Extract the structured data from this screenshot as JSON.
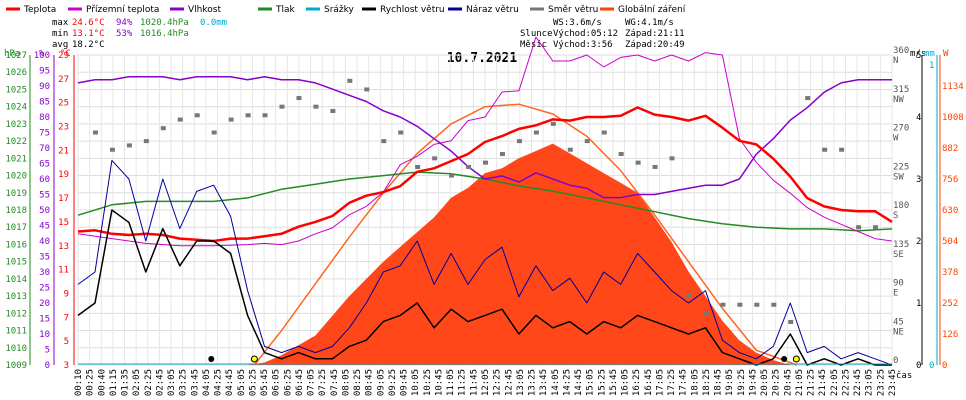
{
  "chart_data": {
    "type": "line",
    "title": "10.7.2021",
    "x_label": "čas",
    "x_ticks": [
      "00:10",
      "00:25",
      "00:40",
      "01:15",
      "01:35",
      "02:05",
      "02:25",
      "02:45",
      "03:05",
      "03:25",
      "03:45",
      "04:05",
      "04:25",
      "04:45",
      "05:05",
      "05:25",
      "05:45",
      "06:05",
      "06:25",
      "06:45",
      "07:05",
      "07:25",
      "07:45",
      "08:05",
      "08:25",
      "08:45",
      "09:05",
      "09:25",
      "09:45",
      "10:05",
      "10:25",
      "10:45",
      "11:05",
      "11:25",
      "11:45",
      "12:05",
      "12:25",
      "12:45",
      "13:05",
      "13:25",
      "13:45",
      "14:05",
      "14:25",
      "14:45",
      "15:05",
      "15:25",
      "15:45",
      "16:05",
      "16:25",
      "16:45",
      "17:05",
      "17:25",
      "17:45",
      "18:05",
      "18:25",
      "18:45",
      "19:05",
      "19:25",
      "19:45",
      "20:05",
      "20:25",
      "20:45",
      "21:05",
      "21:25",
      "21:45",
      "22:05",
      "22:25",
      "22:45",
      "23:05",
      "23:25",
      "23:45"
    ],
    "legend": [
      {
        "name": "Teplota",
        "color": "#ff0000"
      },
      {
        "name": "Přízemní teplota",
        "color": "#cc00cc"
      },
      {
        "name": "Vlhkost",
        "color": "#8800cc"
      },
      {
        "name": "Tlak",
        "color": "#228B22"
      },
      {
        "name": "Srážky",
        "color": "#00aacc"
      },
      {
        "name": "Rychlost větru",
        "color": "#000000"
      },
      {
        "name": "Náraz větru",
        "color": "#000099"
      },
      {
        "name": "Směr větru",
        "color": "#777777"
      },
      {
        "name": "Globální záření",
        "color": "#ff4400"
      }
    ],
    "stats": [
      {
        "label": "max",
        "temp": "24.6°C",
        "hum": "94%",
        "pres": "1020.4hPa",
        "rain": "0.0mm"
      },
      {
        "label": "min",
        "temp": "13.1°C",
        "hum": "53%",
        "pres": "1016.4hPa",
        "rain": ""
      },
      {
        "label": "avg",
        "temp": "18.2°C",
        "hum": "",
        "pres": "",
        "rain": ""
      }
    ],
    "wind_info": [
      "WS:3.6m/s",
      "WG:4.1m/s"
    ],
    "sun_info": {
      "label": "Slunce",
      "rise": "Východ:05:12",
      "set": "Západ:21:11"
    },
    "moon_info": {
      "label": "Měsíc",
      "rise": "Východ:3:56",
      "set": "Západ:20:49"
    },
    "axes": {
      "pressure": {
        "unit": "hPa",
        "min": 1009,
        "max": 1027,
        "ticks": [
          "1009",
          "1010",
          "1011",
          "1012",
          "1013",
          "1014",
          "1015",
          "1016",
          "1017",
          "1018",
          "1019",
          "1020",
          "1021",
          "1022",
          "1023",
          "1024",
          "1025",
          "1026",
          "1027"
        ]
      },
      "humidity": {
        "unit": "%",
        "min": 0,
        "max": 100,
        "ticks": [
          "0",
          "5",
          "10",
          "15",
          "20",
          "25",
          "30",
          "35",
          "40",
          "45",
          "50",
          "55",
          "60",
          "65",
          "70",
          "75",
          "80",
          "85",
          "90",
          "95",
          "100"
        ]
      },
      "temperature": {
        "unit": "°C",
        "min": 3,
        "max": 29,
        "ticks": [
          "3",
          "5",
          "7",
          "9",
          "11",
          "13",
          "15",
          "17",
          "19",
          "21",
          "23",
          "25",
          "27",
          "29"
        ]
      },
      "wind_speed": {
        "unit": "m/s",
        "min": 0,
        "max": 5
      },
      "wind_dir": {
        "ticks": [
          "360",
          "315",
          "270",
          "225",
          "180",
          "135",
          "90",
          "45",
          "0"
        ],
        "labels": [
          "N",
          "NW",
          "W",
          "SW",
          "S",
          "SE",
          "E",
          "NE",
          ""
        ]
      },
      "rain": {
        "unit": "mm",
        "min": 0,
        "max": 1
      },
      "radiation": {
        "unit": "W",
        "ticks": [
          "0",
          "126",
          "252",
          "378",
          "504",
          "630",
          "756",
          "882",
          "1008",
          "1134"
        ]
      }
    },
    "series": {
      "temperature": {
        "x": [
          0,
          0.5,
          1,
          1.5,
          2,
          2.5,
          3,
          3.5,
          4,
          4.5,
          5,
          5.5,
          6,
          6.5,
          7,
          7.5,
          8,
          8.5,
          9,
          9.5,
          10,
          10.5,
          11,
          11.5,
          12,
          12.5,
          13,
          13.5,
          14,
          14.5,
          15,
          15.5,
          16,
          16.5,
          17,
          17.5,
          18,
          18.5,
          19,
          19.5,
          20,
          20.5,
          21,
          21.5,
          22,
          22.5,
          23,
          23.5,
          24
        ],
        "y": [
          14.2,
          14.3,
          14,
          13.9,
          14,
          13.9,
          13.6,
          13.5,
          13.4,
          13.6,
          13.6,
          13.8,
          14,
          14.6,
          15,
          15.5,
          16.6,
          17.2,
          17.5,
          18,
          19.2,
          19.5,
          20.1,
          20.7,
          21.7,
          22.2,
          22.8,
          23.1,
          23.6,
          23.5,
          23.8,
          23.8,
          23.9,
          24.6,
          24.0,
          23.8,
          23.5,
          23.9,
          22.9,
          21.8,
          21.5,
          20.3,
          18.8,
          17.0,
          16.3,
          16.0,
          15.9,
          15.9,
          15.0
        ]
      },
      "ground_temperature": {
        "x": [
          0,
          1,
          2,
          3,
          4,
          5,
          5.5,
          6,
          6.5,
          7,
          7.5,
          8,
          8.5,
          9,
          9.5,
          10,
          10.5,
          11,
          11.5,
          12,
          12.5,
          13,
          13.5,
          14,
          14.5,
          15,
          15.5,
          16,
          16.5,
          17,
          17.5,
          18,
          18.5,
          19,
          19.5,
          20,
          20.5,
          21,
          21.5,
          22,
          22.5,
          23,
          23.5,
          24
        ],
        "y": [
          14,
          13.6,
          13.2,
          13.0,
          13.0,
          13.1,
          13.2,
          13.1,
          13.4,
          14,
          14.5,
          15.6,
          16.3,
          17.5,
          19.8,
          20.5,
          21.5,
          21.8,
          23.5,
          23.8,
          25.9,
          26,
          30.5,
          28.5,
          28.5,
          29,
          28,
          28.8,
          29,
          28.5,
          29,
          28.5,
          29.2,
          29,
          22,
          20,
          18.5,
          17.4,
          16.2,
          15.4,
          14.8,
          14.2,
          13.6,
          13.4
        ]
      },
      "humidity": {
        "x": [
          0,
          0.5,
          1,
          1.5,
          2,
          2.5,
          3,
          3.5,
          4,
          4.5,
          5,
          5.5,
          6,
          6.5,
          7,
          7.5,
          8,
          8.5,
          9,
          9.5,
          10,
          10.5,
          11,
          11.5,
          12,
          12.5,
          13,
          13.5,
          14,
          14.5,
          15,
          15.5,
          16,
          16.5,
          17,
          17.5,
          18,
          18.5,
          19,
          19.5,
          20,
          20.5,
          21,
          21.5,
          22,
          22.5,
          23,
          23.5,
          24
        ],
        "y": [
          91,
          92,
          92,
          93,
          93,
          93,
          92,
          93,
          93,
          93,
          92,
          93,
          92,
          92,
          91,
          89,
          87,
          85,
          82,
          80,
          77,
          73,
          69,
          64,
          60,
          61,
          59,
          62,
          60,
          58,
          57,
          54,
          54,
          55,
          55,
          56,
          57,
          58,
          58,
          60,
          68,
          73,
          79,
          83,
          88,
          91,
          92,
          92,
          92
        ]
      },
      "pressure": {
        "x": [
          0,
          1,
          2,
          3,
          4,
          5,
          6,
          7,
          8,
          9,
          10,
          11,
          12,
          13,
          14,
          15,
          16,
          17,
          18,
          19,
          20,
          21,
          22,
          23,
          24
        ],
        "y": [
          1017.7,
          1018.3,
          1018.5,
          1018.5,
          1018.5,
          1018.7,
          1019.2,
          1019.5,
          1019.8,
          1020.0,
          1020.2,
          1020.1,
          1019.8,
          1019.4,
          1019.1,
          1018.7,
          1018.3,
          1017.9,
          1017.5,
          1017.2,
          1017.0,
          1016.9,
          1016.9,
          1016.8,
          1016.9
        ]
      },
      "wind_speed": {
        "x": [
          0,
          0.5,
          1,
          1.5,
          2,
          2.5,
          3,
          3.5,
          4,
          4.5,
          5,
          5.5,
          6,
          6.5,
          7,
          7.5,
          8,
          8.5,
          9,
          9.5,
          10,
          10.5,
          11,
          11.5,
          12,
          12.5,
          13,
          13.5,
          14,
          14.5,
          15,
          15.5,
          16,
          16.5,
          17,
          17.5,
          18,
          18.5,
          19,
          19.5,
          20,
          20.5,
          21,
          21.5,
          22,
          22.5,
          23,
          23.5,
          24
        ],
        "y": [
          0.8,
          1.0,
          2.5,
          2.3,
          1.5,
          2.2,
          1.6,
          2.0,
          2.0,
          1.8,
          0.8,
          0.2,
          0.1,
          0.2,
          0.1,
          0.1,
          0.3,
          0.4,
          0.7,
          0.8,
          1.0,
          0.6,
          0.9,
          0.7,
          0.8,
          0.9,
          0.5,
          0.8,
          0.6,
          0.7,
          0.5,
          0.7,
          0.6,
          0.8,
          0.7,
          0.6,
          0.5,
          0.6,
          0.2,
          0.1,
          0.0,
          0.1,
          0.5,
          0.0,
          0.1,
          0.0,
          0.1,
          0.0,
          0.0
        ]
      },
      "wind_gust": {
        "x": [
          0,
          0.5,
          1,
          1.5,
          2,
          2.5,
          3,
          3.5,
          4,
          4.5,
          5,
          5.5,
          6,
          6.5,
          7,
          7.5,
          8,
          8.5,
          9,
          9.5,
          10,
          10.5,
          11,
          11.5,
          12,
          12.5,
          13,
          13.5,
          14,
          14.5,
          15,
          15.5,
          16,
          16.5,
          17,
          17.5,
          18,
          18.5,
          19,
          19.5,
          20,
          20.5,
          21,
          21.5,
          22,
          22.5,
          23,
          23.5,
          24
        ],
        "y": [
          1.3,
          1.5,
          3.3,
          3.0,
          2.0,
          3.0,
          2.2,
          2.8,
          2.9,
          2.4,
          1.2,
          0.3,
          0.2,
          0.3,
          0.2,
          0.3,
          0.6,
          1.0,
          1.5,
          1.6,
          2.0,
          1.3,
          1.8,
          1.3,
          1.7,
          1.9,
          1.1,
          1.6,
          1.2,
          1.4,
          1.0,
          1.5,
          1.3,
          1.8,
          1.5,
          1.2,
          1.0,
          1.2,
          0.4,
          0.2,
          0.1,
          0.3,
          1.0,
          0.2,
          0.3,
          0.1,
          0.2,
          0.1,
          0.0
        ]
      },
      "wind_direction": {
        "x": [
          0.5,
          1,
          1.5,
          2,
          2.5,
          3,
          3.5,
          4,
          4.5,
          5,
          5.5,
          6,
          6.5,
          7,
          7.5,
          8,
          8.5,
          9,
          9.5,
          10,
          10.5,
          11,
          11.5,
          12,
          12.5,
          13,
          13.5,
          14,
          14.5,
          15,
          15.5,
          16,
          16.5,
          17,
          17.5,
          18,
          18.5,
          19,
          19.5,
          20,
          20.5,
          21,
          21.5,
          22,
          22.5,
          23,
          23.5
        ],
        "y": [
          270,
          250,
          255,
          260,
          275,
          285,
          290,
          270,
          285,
          290,
          290,
          300,
          310,
          300,
          295,
          330,
          320,
          260,
          270,
          230,
          240,
          220,
          230,
          235,
          245,
          260,
          270,
          280,
          250,
          260,
          270,
          245,
          235,
          230,
          240,
          80,
          60,
          70,
          70,
          70,
          70,
          50,
          310,
          250,
          250,
          160,
          160
        ]
      },
      "radiation": {
        "x": [
          0,
          5,
          5.5,
          6,
          6.5,
          7,
          7.5,
          8,
          8.5,
          9,
          9.5,
          10,
          10.5,
          11,
          11.5,
          12,
          12.5,
          13,
          13.5,
          14,
          14.5,
          15,
          15.5,
          16,
          16.5,
          17,
          17.5,
          18,
          18.5,
          19,
          19.5,
          20,
          20.5,
          21,
          24
        ],
        "y": [
          0,
          0,
          10,
          40,
          80,
          120,
          200,
          280,
          350,
          420,
          480,
          540,
          600,
          680,
          720,
          780,
          800,
          840,
          870,
          900,
          860,
          820,
          780,
          740,
          700,
          600,
          500,
          380,
          280,
          180,
          100,
          50,
          20,
          0,
          0
        ]
      },
      "theoretical_radiation": {
        "x": [
          5.2,
          6,
          7,
          8,
          9,
          10,
          11,
          12,
          13,
          14,
          15,
          16,
          17,
          18,
          19,
          20,
          21.2
        ],
        "y": [
          0,
          140,
          330,
          520,
          700,
          860,
          980,
          1050,
          1060,
          1020,
          930,
          790,
          610,
          420,
          230,
          60,
          0
        ]
      }
    }
  }
}
